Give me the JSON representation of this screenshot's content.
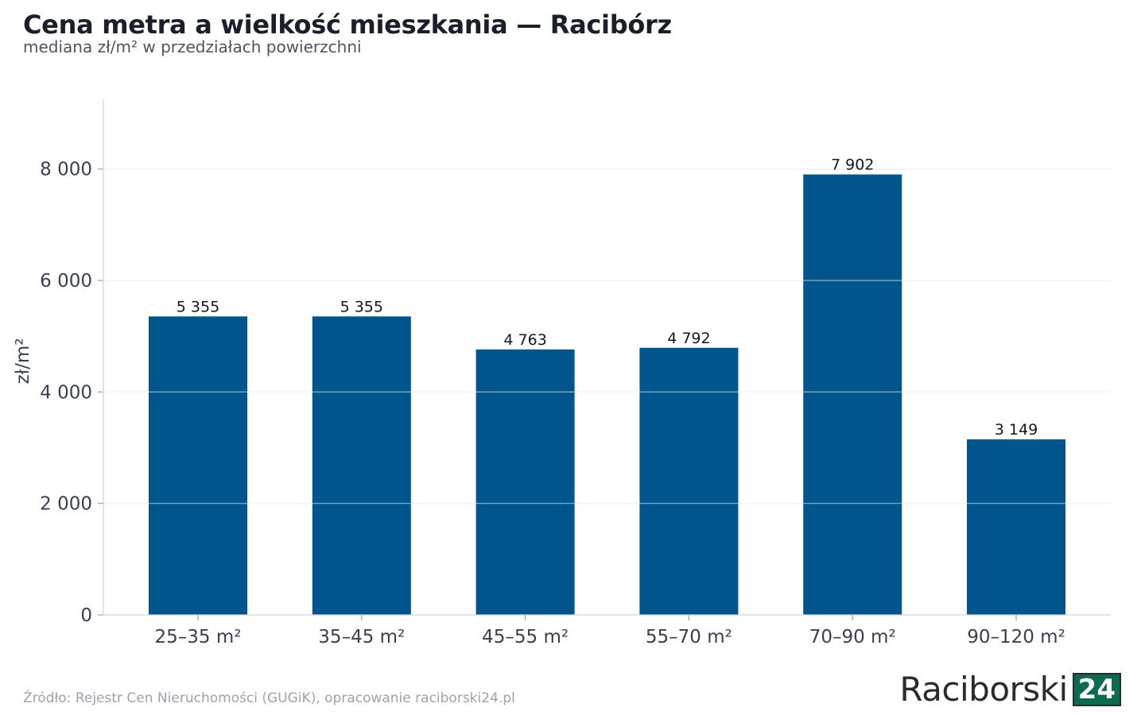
{
  "header": {
    "title": "Cena metra a wielkość mieszkania — Racibórz",
    "subtitle": "mediana zł/m² w przedziałach powierzchni"
  },
  "footer": {
    "source": "Źródło: Rejestr Cen Nieruchomości (GUGiK), opracowanie raciborski24.pl"
  },
  "logo": {
    "text": "Raciborski",
    "badge": "24",
    "badge_color": "#0f6b4f"
  },
  "chart_data": {
    "type": "bar",
    "title": "Cena metra a wielkość mieszkania — Racibórz",
    "subtitle": "mediana zł/m² w przedziałach powierzchni",
    "ylabel": "zł/m²",
    "xlabel": "",
    "categories": [
      "25–35 m²",
      "35–45 m²",
      "45–55 m²",
      "55–70 m²",
      "70–90 m²",
      "90–120 m²"
    ],
    "values": [
      5355,
      5355,
      4763,
      4792,
      7902,
      3149
    ],
    "value_labels": [
      "5 355",
      "5 355",
      "4 763",
      "4 792",
      "7 902",
      "3 149"
    ],
    "yticks": [
      0,
      2000,
      4000,
      6000,
      8000
    ],
    "ytick_labels": [
      "0",
      "2 000",
      "4 000",
      "6 000",
      "8 000"
    ],
    "ylim": [
      0,
      9250
    ],
    "grid": true,
    "bar_color": "#00558c"
  }
}
